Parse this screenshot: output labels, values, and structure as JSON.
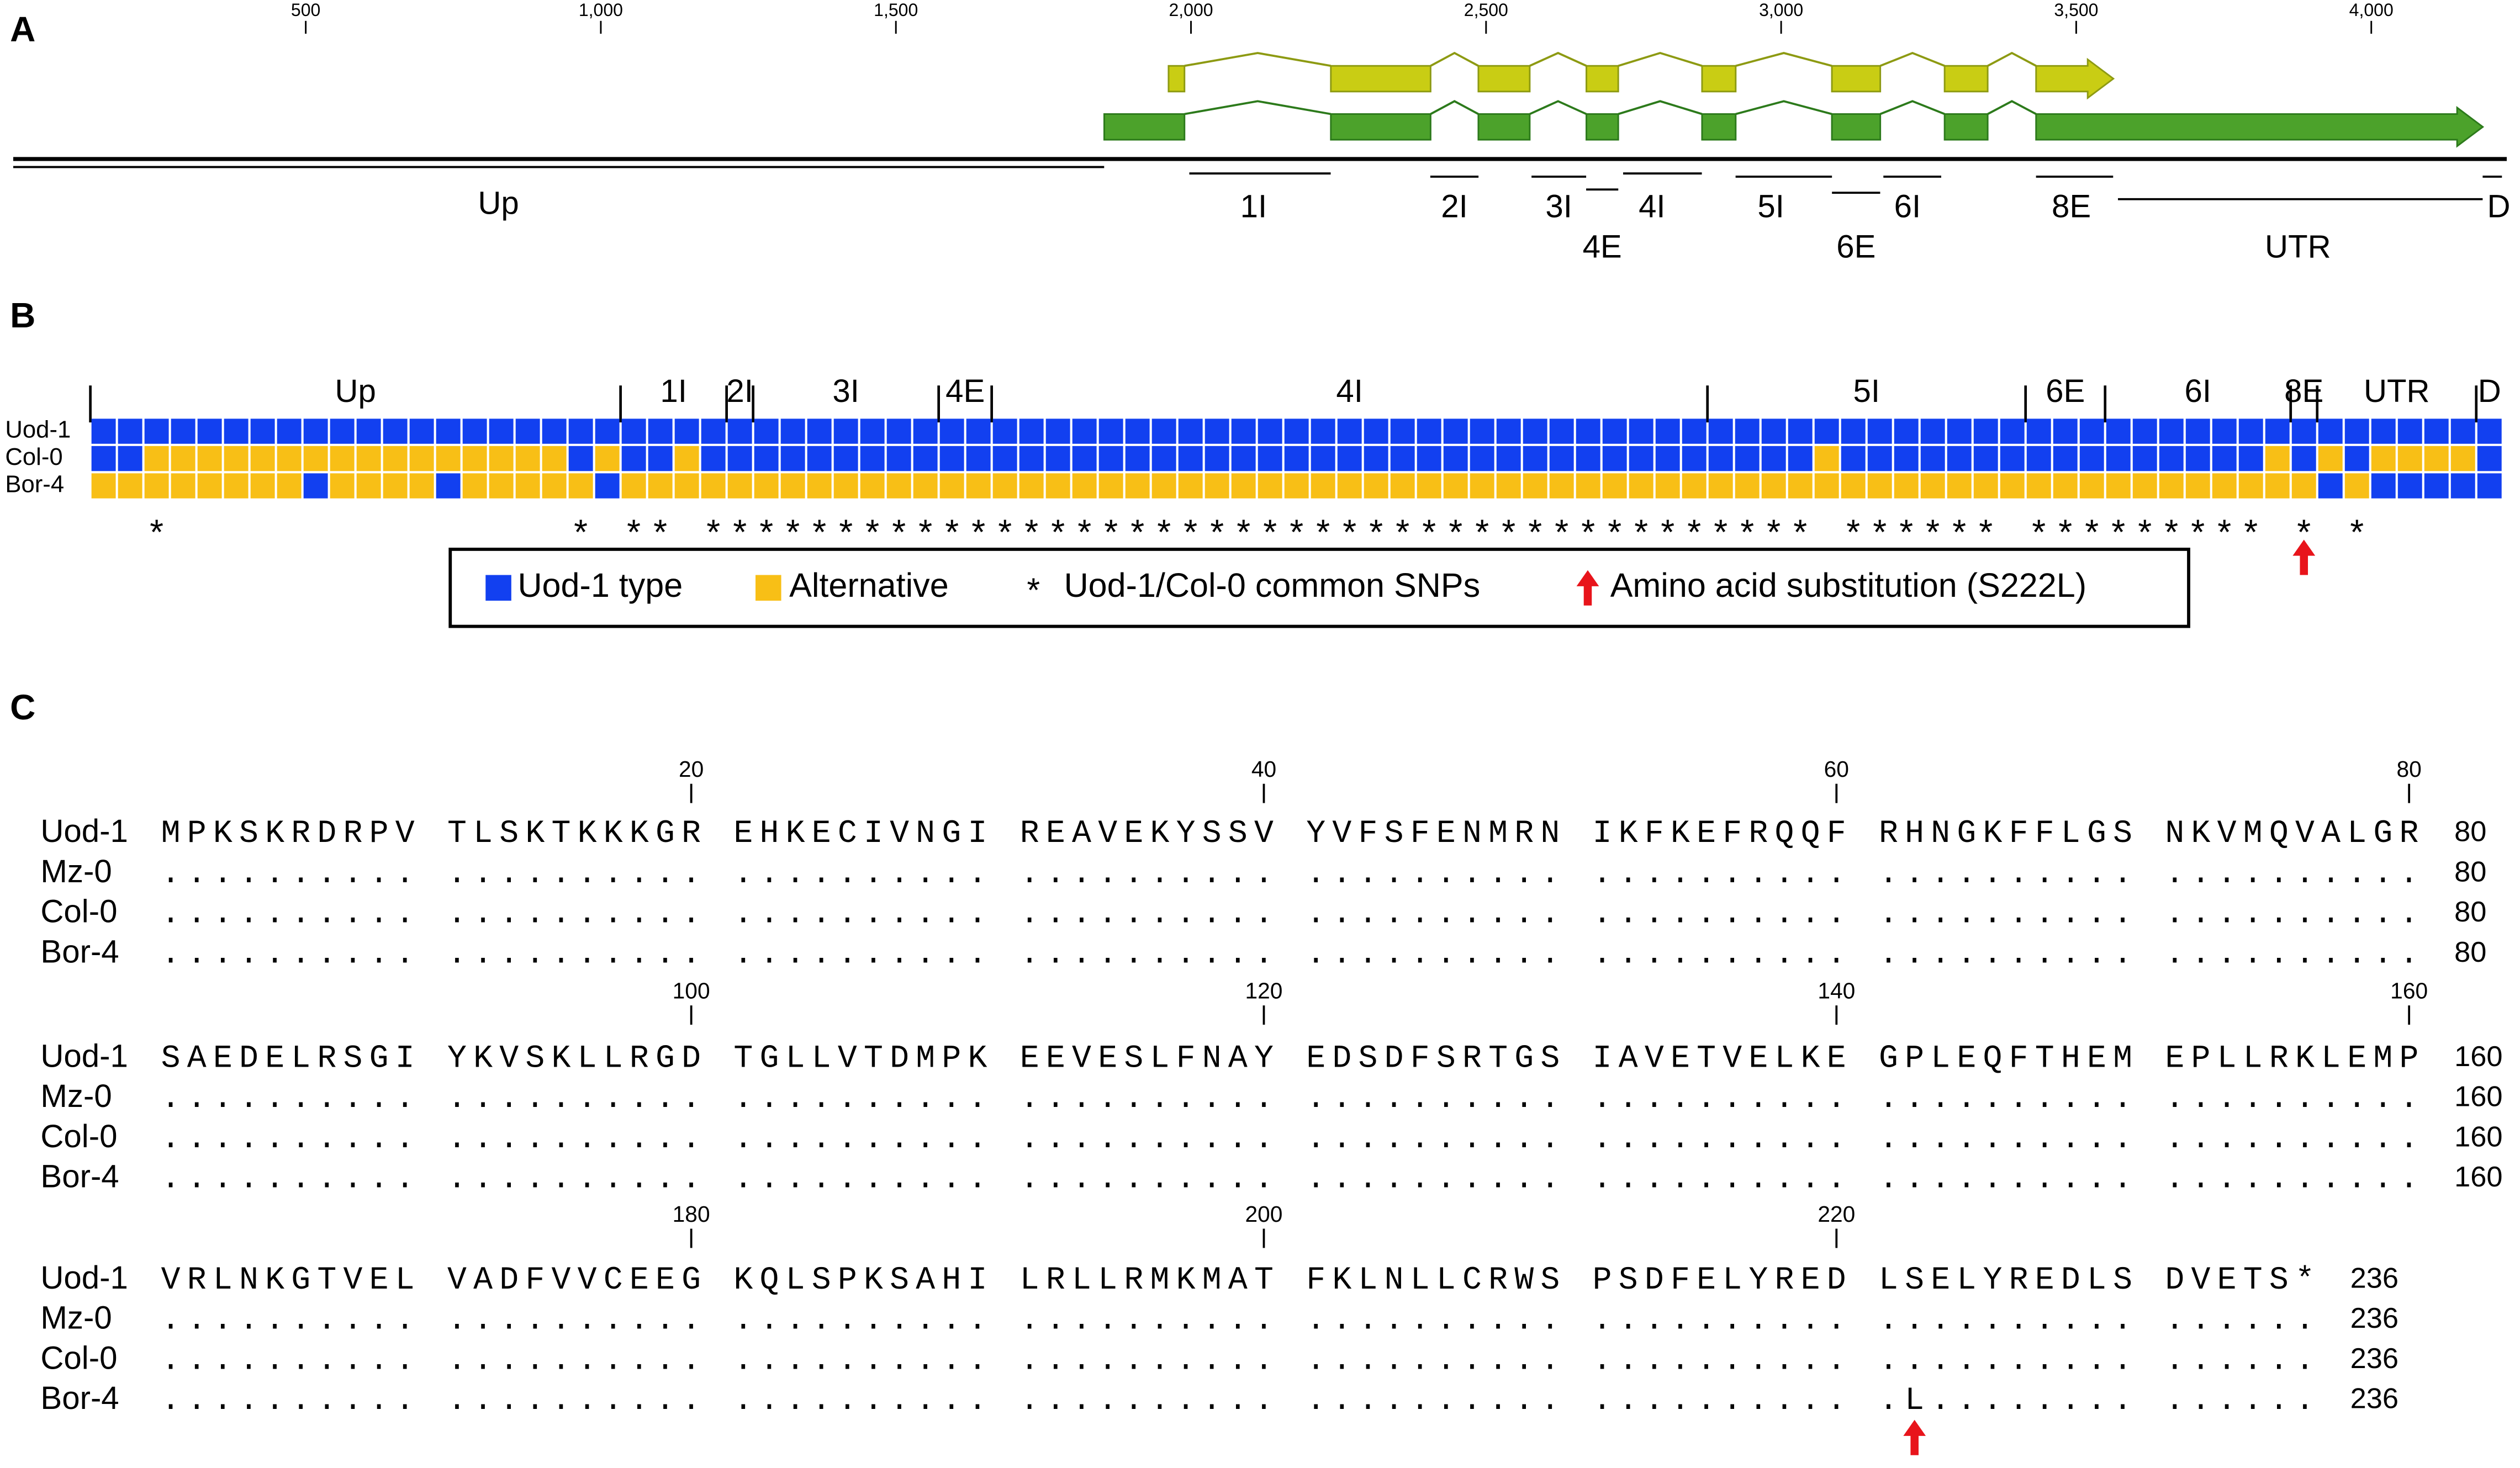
{
  "panel_a": {
    "label": "A",
    "scale": {
      "xlim": [
        0,
        4235
      ],
      "ticks": [
        500,
        {
          "value": 1000,
          "label": "1,000"
        },
        {
          "value": 1500,
          "label": "1,500"
        },
        {
          "value": 2000,
          "label": "2,000"
        },
        {
          "value": 2500,
          "label": "2,500"
        },
        {
          "value": 3000,
          "label": "3,000"
        },
        {
          "value": 3500,
          "label": "3,500"
        },
        {
          "value": 4000,
          "label": "4,000"
        }
      ]
    },
    "genes": [
      {
        "color": "#c9cd14",
        "exons": [
          [
            1962,
            1989
          ],
          [
            2237,
            2406
          ],
          [
            2487,
            2574
          ],
          [
            2670,
            2724
          ],
          [
            2866,
            2923
          ],
          [
            3086,
            3168
          ],
          [
            3277,
            3350
          ],
          [
            3432,
            3563
          ]
        ]
      },
      {
        "color": "#4ca22b",
        "exons": [
          [
            1853,
            1989
          ],
          [
            2237,
            2406
          ],
          [
            2487,
            2574
          ],
          [
            2670,
            2724
          ],
          [
            2866,
            2923
          ],
          [
            3086,
            3168
          ],
          [
            3277,
            3350
          ],
          [
            3432,
            4189
          ]
        ]
      }
    ],
    "regions": [
      "Up",
      "1I",
      "2I",
      "3I",
      "4E",
      "4I",
      "5I",
      "6E",
      "6I",
      "8E",
      "UTR",
      "D"
    ]
  },
  "panel_b": {
    "label": "B",
    "regions": [
      {
        "label": "Up",
        "cols": 20
      },
      {
        "label": "1I",
        "cols": 4
      },
      {
        "label": "2I",
        "cols": 1
      },
      {
        "label": "3I",
        "cols": 7
      },
      {
        "label": "4E",
        "cols": 2
      },
      {
        "label": "4I",
        "cols": 27
      },
      {
        "label": "5I",
        "cols": 12
      },
      {
        "label": "6E",
        "cols": 3
      },
      {
        "label": "6I",
        "cols": 7
      },
      {
        "label": "8E",
        "cols": 1
      },
      {
        "label": "UTR",
        "cols": 6
      },
      {
        "label": "D",
        "cols": 1
      }
    ],
    "rows": [
      {
        "name": "Uod-1",
        "alleles": "0000000000000000000000000000000000000000000000000000000000000000000000000000000000000000000"
      },
      {
        "name": "Col-0",
        "alleles": "0011111111111111110100100000000000000000000000000000000000000000010000000000000000101011110"
      },
      {
        "name": "Bor-4",
        "alleles": "1111111101111011111011111111111111111111111111111111111111111111111111111111111111110100000"
      }
    ],
    "snp_row": "  *               * ** ****************************************** ****** ********* * *     ",
    "legend": [
      {
        "label": "Uod-1 type",
        "color": "#1240f0"
      },
      {
        "label": "Alternative",
        "color": "#f8bf16"
      },
      {
        "symbol": "*",
        "label": "Uod-1/Col-0 common SNPs"
      },
      {
        "label": "Amino acid substitution (S222L)",
        "color": "#e8141b"
      }
    ]
  },
  "panel_c": {
    "label": "C",
    "blocks": [
      {
        "ticks": [
          20,
          40,
          60,
          80
        ],
        "rows": [
          {
            "name": "Uod-1",
            "seq": "MPKSKRDRPV TLSKTKKKGR EHKECIVNGI REAVEKYSSV YVFSFENMRN IKFKEFRQQF RHNGKFFLGS NKVMQVALGR",
            "end": 80
          },
          {
            "name": "Mz-0",
            "seq": ".......... .......... .......... .......... .......... .......... .......... ..........",
            "end": 80
          },
          {
            "name": "Col-0",
            "seq": ".......... .......... .......... .......... .......... .......... .......... ..........",
            "end": 80
          },
          {
            "name": "Bor-4",
            "seq": ".......... .......... .......... .......... .......... .......... .......... ..........",
            "end": 80
          }
        ]
      },
      {
        "ticks": [
          100,
          120,
          140,
          160
        ],
        "rows": [
          {
            "name": "Uod-1",
            "seq": "SAEDELRSGI YKVSKLLRGD TGLLVTDMPK EEVESLFNAY EDSDFSRTGS IAVETVELKE GPLEQFTHEM EPLLRKLEMP",
            "end": 160
          },
          {
            "name": "Mz-0",
            "seq": ".......... .......... .......... .......... .......... .......... .......... ..........",
            "end": 160
          },
          {
            "name": "Col-0",
            "seq": ".......... .......... .......... .......... .......... .......... .......... ..........",
            "end": 160
          },
          {
            "name": "Bor-4",
            "seq": ".......... .......... .......... .......... .......... .......... .......... ..........",
            "end": 160
          }
        ]
      },
      {
        "ticks": [
          180,
          200,
          220
        ],
        "rows": [
          {
            "name": "Uod-1",
            "seq": "VRLNKGTVEL VADFVVCEEG KQLSPKSAHI LRLLRMKMAT FKLNLLCRWS PSDFELYRED LSELYREDLS DVETS*",
            "end": 236
          },
          {
            "name": "Mz-0",
            "seq": ".......... .......... .......... .......... .......... .......... .......... ......",
            "end": 236
          },
          {
            "name": "Col-0",
            "seq": ".......... .......... .......... .......... .......... .......... .......... ......",
            "end": 236
          },
          {
            "name": "Bor-4",
            "seq": ".......... .......... .......... .......... .......... .......... .L........ ......",
            "end": 236
          }
        ]
      }
    ]
  }
}
